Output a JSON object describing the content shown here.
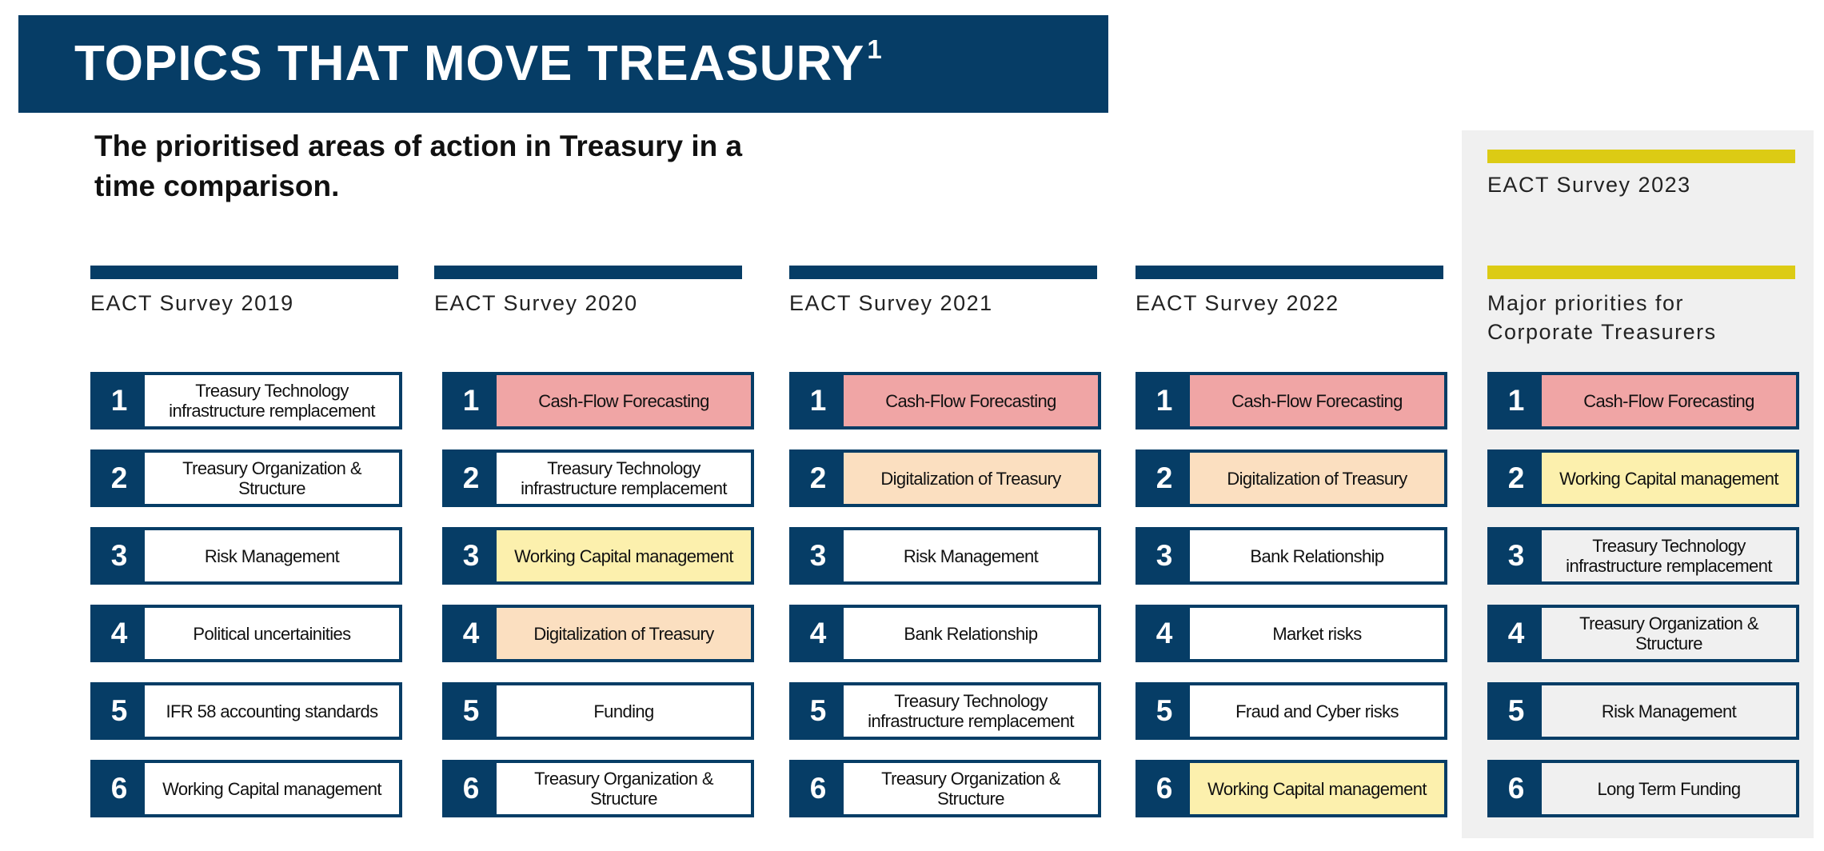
{
  "banner": {
    "title": "TOPICS THAT MOVE TREASURY",
    "footnote": "1"
  },
  "subtitle": "The prioritised areas of action in Treasury in a time comparison.",
  "colors": {
    "navy": "#063d66",
    "accent_yellow": "#dccb14",
    "highlight_red": "#f0a5a5",
    "highlight_orange": "#fbdfc0",
    "highlight_yellow": "#fcf0ad",
    "panel_grey": "#f0f0f0"
  },
  "columns": [
    {
      "title": "EACT Survey 2019",
      "items": [
        {
          "rank": "1",
          "label": "Treasury Technology infrastructure remplacement",
          "highlight": "none"
        },
        {
          "rank": "2",
          "label": "Treasury Organization & Structure",
          "highlight": "none"
        },
        {
          "rank": "3",
          "label": "Risk Management",
          "highlight": "none"
        },
        {
          "rank": "4",
          "label": "Political uncertainities",
          "highlight": "none"
        },
        {
          "rank": "5",
          "label": "IFR 58 accounting standards",
          "highlight": "none"
        },
        {
          "rank": "6",
          "label": "Working Capital management",
          "highlight": "none"
        }
      ]
    },
    {
      "title": "EACT Survey 2020",
      "items": [
        {
          "rank": "1",
          "label": "Cash-Flow Forecasting",
          "highlight": "red"
        },
        {
          "rank": "2",
          "label": "Treasury Technology infrastructure remplacement",
          "highlight": "none"
        },
        {
          "rank": "3",
          "label": "Working Capital management",
          "highlight": "yellow"
        },
        {
          "rank": "4",
          "label": "Digitalization of Treasury",
          "highlight": "orange"
        },
        {
          "rank": "5",
          "label": "Funding",
          "highlight": "none"
        },
        {
          "rank": "6",
          "label": "Treasury Organization & Structure",
          "highlight": "none"
        }
      ]
    },
    {
      "title": "EACT Survey 2021",
      "items": [
        {
          "rank": "1",
          "label": "Cash-Flow Forecasting",
          "highlight": "red"
        },
        {
          "rank": "2",
          "label": "Digitalization of Treasury",
          "highlight": "orange"
        },
        {
          "rank": "3",
          "label": "Risk Management",
          "highlight": "none"
        },
        {
          "rank": "4",
          "label": "Bank Relationship",
          "highlight": "none"
        },
        {
          "rank": "5",
          "label": "Treasury Technology infrastructure remplacement",
          "highlight": "none"
        },
        {
          "rank": "6",
          "label": "Treasury Organization & Structure",
          "highlight": "none"
        }
      ]
    },
    {
      "title": "EACT Survey 2022",
      "items": [
        {
          "rank": "1",
          "label": "Cash-Flow Forecasting",
          "highlight": "red"
        },
        {
          "rank": "2",
          "label": "Digitalization of Treasury",
          "highlight": "orange"
        },
        {
          "rank": "3",
          "label": "Bank Relationship",
          "highlight": "none"
        },
        {
          "rank": "4",
          "label": "Market risks",
          "highlight": "none"
        },
        {
          "rank": "5",
          "label": "Fraud and Cyber risks",
          "highlight": "none"
        },
        {
          "rank": "6",
          "label": "Working Capital management",
          "highlight": "yellow"
        }
      ]
    },
    {
      "title": "Major priorities for Corporate Treasurers",
      "header": "EACT Survey 2023",
      "items": [
        {
          "rank": "1",
          "label": "Cash-Flow Forecasting",
          "highlight": "red"
        },
        {
          "rank": "2",
          "label": "Working Capital management",
          "highlight": "yellow"
        },
        {
          "rank": "3",
          "label": "Treasury Technology infrastructure remplacement",
          "highlight": "grey"
        },
        {
          "rank": "4",
          "label": "Treasury Organization & Structure",
          "highlight": "grey"
        },
        {
          "rank": "5",
          "label": "Risk Management",
          "highlight": "grey"
        },
        {
          "rank": "6",
          "label": "Long Term Funding",
          "highlight": "grey"
        }
      ]
    }
  ]
}
